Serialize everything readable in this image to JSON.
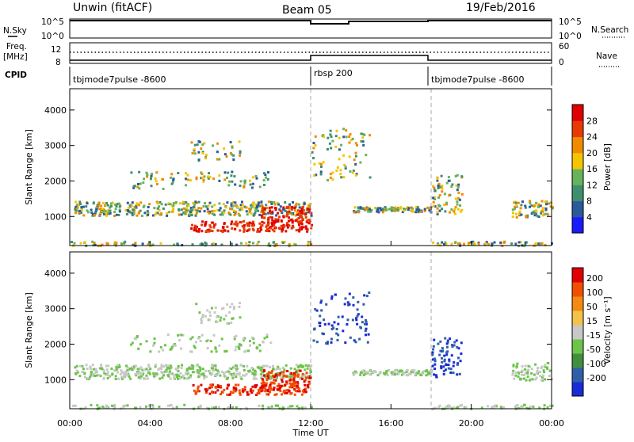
{
  "header": {
    "station": "Unwin (fitACF)",
    "beam": "Beam 05",
    "date": "19/Feb/2016"
  },
  "status_panels": {
    "nsky_label": "N.Sky",
    "nsearch_label": "N.Search",
    "freq_label_line1": "Freq.",
    "freq_label_line2": "[MHz]",
    "nave_label": "Nave",
    "cpid_label": "CPID",
    "nsky_ticks": [
      "10^5",
      "10^0"
    ],
    "nsearch_ticks": [
      "10^5",
      "10^0"
    ],
    "freq_ticks": [
      "12",
      "8"
    ],
    "nave_ticks": [
      "60",
      "0"
    ],
    "cpid_segments": [
      {
        "start": 0,
        "end": 12,
        "label": "tbjmode7pulse -8600"
      },
      {
        "start": 12,
        "end": 18,
        "label": "rbsp 200"
      },
      {
        "start": 18,
        "end": 24,
        "label": "tbjmode7pulse -8600"
      }
    ]
  },
  "chart_data": [
    {
      "type": "heatmap",
      "quantity": "power",
      "ylabel": "Slant Range [km]",
      "ylim": [
        180,
        4600
      ],
      "yticks": [
        1000,
        2000,
        3000,
        4000
      ],
      "xlim": [
        0,
        24
      ],
      "colorbar": {
        "label": "Power [dB]",
        "range": [
          0,
          32
        ],
        "ticks": [
          "4",
          "8",
          "12",
          "16",
          "20",
          "24",
          "28"
        ],
        "colors": [
          "#1a1aff",
          "#2a5a9a",
          "#3f8f6f",
          "#66b35c",
          "#f5c400",
          "#f08a00",
          "#e83a00",
          "#e00000"
        ]
      }
    },
    {
      "type": "heatmap",
      "quantity": "velocity",
      "ylabel": "Slant Range [km]",
      "ylim": [
        180,
        4600
      ],
      "yticks": [
        1000,
        2000,
        3000,
        4000
      ],
      "xlim": [
        0,
        24
      ],
      "xlabel": "Time UT",
      "colorbar": {
        "label": "Velocity [m s⁻¹]",
        "ticks": [
          "200",
          "100",
          "50",
          "15",
          "-15",
          "-50",
          "-100",
          "-200"
        ],
        "colors": [
          "#1a2ad8",
          "#2f5fa8",
          "#3f8f3f",
          "#6cc44a",
          "#c8c8c8",
          "#f2c24a",
          "#f58a10",
          "#f05000",
          "#e00000"
        ]
      }
    }
  ],
  "x_axis": {
    "ticks": [
      "00:00",
      "04:00",
      "08:00",
      "12:00",
      "16:00",
      "20:00",
      "00:00"
    ],
    "label": "Time UT"
  }
}
